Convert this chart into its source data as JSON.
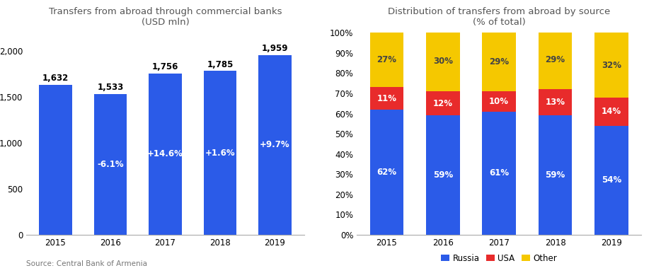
{
  "years": [
    "2015",
    "2016",
    "2017",
    "2018",
    "2019"
  ],
  "bar_values": [
    1632,
    1533,
    1756,
    1785,
    1959
  ],
  "bar_labels": [
    "1,632",
    "1,533",
    "1,756",
    "1,785",
    "1,959"
  ],
  "bar_pct_labels": [
    "",
    "-6.1%",
    "+14.6%",
    "+1.6%",
    "+9.7%"
  ],
  "bar_color": "#2b5be8",
  "bar_title": "Transfers from abroad through commercial banks\n(USD mln)",
  "bar_ylim": [
    0,
    2200
  ],
  "bar_yticks": [
    0,
    500,
    1000,
    1500,
    2000
  ],
  "source_text": "Source: Central Bank of Armenia",
  "stacked_years": [
    "2015",
    "2016",
    "2017",
    "2018",
    "2019"
  ],
  "russia": [
    62,
    59,
    61,
    59,
    54
  ],
  "usa": [
    11,
    12,
    10,
    13,
    14
  ],
  "other": [
    27,
    30,
    29,
    29,
    32
  ],
  "stacked_title": "Distribution of transfers from abroad by source\n(% of total)",
  "color_russia": "#2b5be8",
  "color_usa": "#e82b2b",
  "color_other": "#f5c800",
  "legend_labels": [
    "Russia",
    "USA",
    "Other"
  ]
}
